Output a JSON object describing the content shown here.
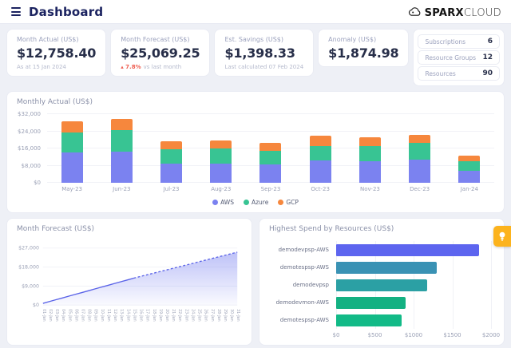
{
  "header": {
    "title": "Dashboard",
    "brand_bold": "SPARX",
    "brand_light": "CLOUD"
  },
  "icons": {
    "menu": "menu-icon",
    "logo": "cloud-logo-icon",
    "fab": "lightbulb-icon"
  },
  "kpis": [
    {
      "label": "Month Actual (US$)",
      "value": "$12,758.40",
      "sub": "As at 15 Jan 2024"
    },
    {
      "label": "Month Forecast (US$)",
      "value": "$25,069.25",
      "delta": "▴ 7.8%",
      "sub": "vs last month"
    },
    {
      "label": "Est. Savings (US$)",
      "value": "$1,398.33",
      "sub": "Last calculated 07 Feb 2024"
    },
    {
      "label": "Anomaly (US$)",
      "value": "$1,874.98"
    }
  ],
  "stats": [
    {
      "label": "Subscriptions",
      "value": "6"
    },
    {
      "label": "Resource Groups",
      "value": "12"
    },
    {
      "label": "Resources",
      "value": "90"
    }
  ],
  "colors": {
    "aws": "#7b82f0",
    "azure": "#38c493",
    "gcp": "#f6873d",
    "forecast_line": "#5a63e8",
    "forecast_fill": "#7c84f0",
    "accent_red": "#ee5d50",
    "fab_yellow": "#fcb31d",
    "navy": "#1b2360"
  },
  "chart_data": [
    {
      "id": "monthly_actual",
      "type": "bar",
      "stacked": true,
      "title": "Monthly Actual (US$)",
      "categories": [
        "May-23",
        "Jun-23",
        "Jul-23",
        "Aug-23",
        "Sep-23",
        "Oct-23",
        "Nov-23",
        "Dec-23",
        "Jan-24"
      ],
      "series": [
        {
          "name": "AWS",
          "color": "#7b82f0",
          "values": [
            14300,
            14700,
            8800,
            9000,
            8700,
            10400,
            10100,
            10900,
            5500
          ]
        },
        {
          "name": "Azure",
          "color": "#38c493",
          "values": [
            9100,
            9700,
            6900,
            6900,
            6100,
            6900,
            7100,
            7600,
            4400
          ]
        },
        {
          "name": "GCP",
          "color": "#f6873d",
          "values": [
            5300,
            5500,
            3800,
            3700,
            3900,
            4700,
            4000,
            4000,
            2850
          ]
        }
      ],
      "ylim": [
        0,
        32000
      ],
      "yticks": [
        0,
        8000,
        16000,
        24000,
        32000
      ],
      "ytick_labels": [
        "$0",
        "$8,000",
        "$16,000",
        "$24,000",
        "$32,000"
      ],
      "grid": true,
      "legend_position": "bottom"
    },
    {
      "id": "month_forecast",
      "type": "line",
      "title": "Month Forecast (US$)",
      "x": [
        "01-Jan",
        "02-Jan",
        "03-Jan",
        "04-Jan",
        "05-Jan",
        "06-Jan",
        "07-Jan",
        "08-Jan",
        "09-Jan",
        "10-Jan",
        "11-Jan",
        "12-Jan",
        "13-Jan",
        "14-Jan",
        "15-Jan",
        "16-Jan",
        "17-Jan",
        "18-Jan",
        "19-Jan",
        "20-Jan",
        "21-Jan",
        "22-Jan",
        "23-Jan",
        "24-Jan",
        "25-Jan",
        "26-Jan",
        "27-Jan",
        "28-Jan",
        "29-Jan",
        "30-Jan",
        "31-Jan"
      ],
      "values": [
        850,
        1701,
        2551,
        3402,
        4253,
        5103,
        5954,
        6804,
        7655,
        8505,
        9356,
        10207,
        11057,
        11908,
        12758,
        13528,
        14297,
        15067,
        15836,
        16606,
        17375,
        18145,
        18914,
        19684,
        20453,
        21223,
        21992,
        22762,
        23531,
        24300,
        25069
      ],
      "solid_until_index": 14,
      "ylim": [
        0,
        27000
      ],
      "yticks": [
        0,
        9000,
        18000,
        27000
      ],
      "ytick_labels": [
        "$0",
        "$9,000",
        "$18,000",
        "$27,000"
      ],
      "area_fill": true,
      "grid": true
    },
    {
      "id": "highest_spend",
      "type": "bar",
      "orientation": "horizontal",
      "title": "Highest Spend by Resources (US$)",
      "categories": [
        "demodevpsp-AWS",
        "demotespsp-AWS",
        "demodevpsp",
        "demodevmon-AWS",
        "demotespsp-AWS"
      ],
      "values": [
        1850,
        1300,
        1180,
        900,
        850
      ],
      "bar_colors": [
        "#5d65ef",
        "#3a92b4",
        "#2ba0a4",
        "#13b182",
        "#12ba87"
      ],
      "xlim": [
        0,
        2000
      ],
      "xticks": [
        0,
        500,
        1000,
        1500,
        2000
      ],
      "xtick_labels": [
        "$0",
        "$500",
        "$1000",
        "$1500",
        "$2000"
      ],
      "grid": true
    }
  ]
}
